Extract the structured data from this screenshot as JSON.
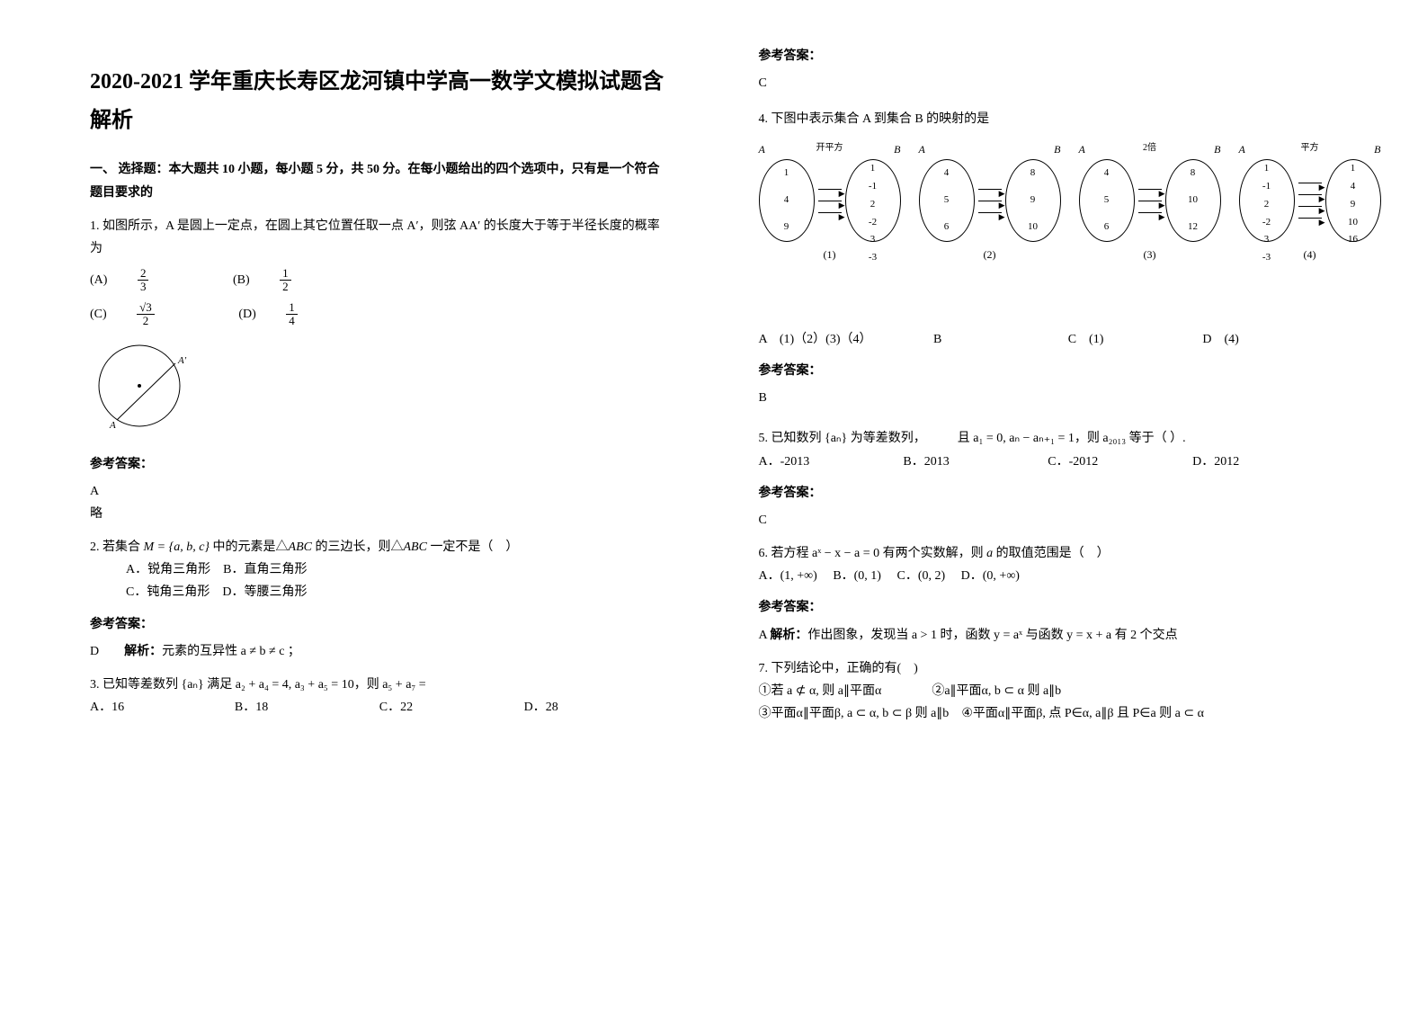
{
  "title": "2020-2021 学年重庆长寿区龙河镇中学高一数学文模拟试题含解析",
  "section1": "一、 选择题：本大题共 10 小题，每小题 5 分，共 50 分。在每小题给出的四个选项中，只有是一个符合题目要求的",
  "q1": {
    "stem": "1. 如图所示，A 是圆上一定点，在圆上其它位置任取一点 A′，则弦 AA′ 的长度大于等于半径长度的概率为",
    "optA_pre": "(A) ",
    "optA_num": "2",
    "optA_den": "3",
    "optB_pre": "(B) ",
    "optB_num": "1",
    "optB_den": "2",
    "optC_pre": "(C) ",
    "optC_num": "√3",
    "optC_den": "2",
    "optD_pre": "(D) ",
    "optD_num": "1",
    "optD_den": "4",
    "ans_label": "参考答案：",
    "ans": "A",
    "ext": "略"
  },
  "q2": {
    "stem_a": "2. 若集合 ",
    "stem_b": " 中的元素是△",
    "stem_c": " 的三边长，则△",
    "stem_d": " 一定不是（　）",
    "set": "M = {a, b, c}",
    "abc": "ABC",
    "optA": "A．锐角三角形",
    "optB": "B．直角三角形",
    "optC": "C．钝角三角形",
    "optD": "D．等腰三角形",
    "ans_label": "参考答案：",
    "ans": "D",
    "explain_pre": "解析：",
    "explain": "元素的互异性 a ≠ b ≠ c ；"
  },
  "q3": {
    "stem_a": "3. 已知等差数列 ",
    "stem_b": " 满足 ",
    "stem_c": "，则 ",
    "stem_d": " =",
    "seq": "{aₙ}",
    "cond": "a₂ + a₄ = 4, a₃ + a₅ = 10",
    "ask": "a₅ + a₇",
    "optA": "A．16",
    "optB": "B．18",
    "optC": "C．22",
    "optD": "D．28"
  },
  "q3ans_label": "参考答案：",
  "q3ans": "C",
  "q4": {
    "stem": "4. 下图中表示集合 A 到集合 B 的映射的是",
    "diag": [
      {
        "labelA": "A",
        "labelB": "B",
        "top": "开平方",
        "left": [
          "1",
          "4",
          "9"
        ],
        "right": [
          "1",
          "-1",
          "2",
          "-2",
          "3",
          "-3"
        ],
        "cap": "(1)"
      },
      {
        "labelA": "A",
        "labelB": "B",
        "top": "",
        "left": [
          "4",
          "5",
          "6"
        ],
        "right": [
          "8",
          "9",
          "10"
        ],
        "cap": "(2)"
      },
      {
        "labelA": "A",
        "labelB": "B",
        "top": "2倍",
        "left": [
          "4",
          "5",
          "6"
        ],
        "right": [
          "8",
          "10",
          "12"
        ],
        "cap": "(3)"
      },
      {
        "labelA": "A",
        "labelB": "B",
        "top": "平方",
        "left": [
          "1",
          "-1",
          "2",
          "-2",
          "3",
          "-3"
        ],
        "right": [
          "1",
          "4",
          "9",
          "10",
          "16"
        ],
        "cap": "(4)"
      }
    ],
    "optA": "A　(1)（2）(3)（4）",
    "optB": "B",
    "optC": "C　(1)",
    "optD": "D　(4)",
    "ans_label": "参考答案：",
    "ans": "B"
  },
  "q5": {
    "stem_a": "5. 已知数列 ",
    "stem_b": " 为等差数列，",
    "stem_c": "且 ",
    "stem_d": "，则 ",
    "stem_e": " 等于（ ）.",
    "seq": "{aₙ}",
    "cond": "a₁ = 0, aₙ − aₙ₊₁ = 1",
    "ask": "a₂₀₁₃",
    "optA": "A．-2013",
    "optB": "B．2013",
    "optC": "C．-2012",
    "optD": "D．2012",
    "ans_label": "参考答案：",
    "ans": "C"
  },
  "q6": {
    "stem_a": "6. 若方程 ",
    "stem_b": " 有两个实数解，则 ",
    "stem_c": " 的取值范围是（　）",
    "eq": "aˣ − x − a = 0",
    "var": "a",
    "optA": "A．(1, +∞)",
    "optB": "B．(0, 1)",
    "optC": "C．(0, 2)",
    "optD": "D．(0, +∞)",
    "ans_label": "参考答案：",
    "ans_pre": "A ",
    "explain_pre": "解析：",
    "explain": "作出图象，发现当 a > 1 时，函数 y = aˣ 与函数 y = x + a 有 2 个交点"
  },
  "q7": {
    "stem": "7. 下列结论中，正确的有(　)",
    "opt1": "①若 a ⊄ α, 则 a∥平面α",
    "opt2": "②a∥平面α, b ⊂ α 则 a∥b",
    "opt3": "③平面α∥平面β, a ⊂ α, b ⊂ β 则 a∥b",
    "opt4": "④平面α∥平面β, 点 P∈α, a∥β 且 P∈a 则 a ⊂ α"
  }
}
